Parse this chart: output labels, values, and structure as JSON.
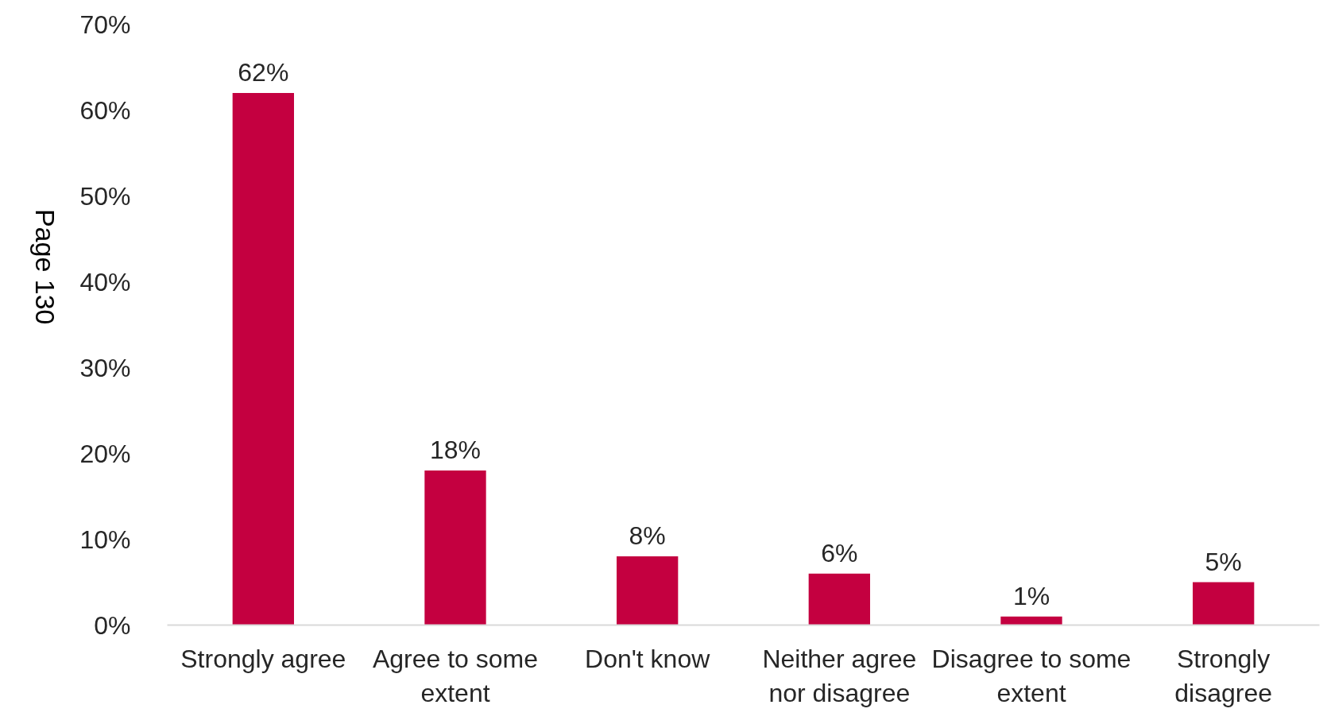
{
  "chart_data": {
    "type": "bar",
    "categories": [
      "Strongly agree",
      "Agree to some extent",
      "Don't know",
      "Neither agree nor disagree",
      "Disagree to some extent",
      "Strongly disagree"
    ],
    "values": [
      62,
      18,
      8,
      6,
      1,
      5
    ],
    "color": "#c40040",
    "data_labels": true,
    "value_labels": [
      "62%",
      "18%",
      "8%",
      "6%",
      "1%",
      "5%"
    ],
    "ylim": [
      0,
      70
    ],
    "yticks": [
      {
        "value": 0,
        "label": "0%"
      },
      {
        "value": 10,
        "label": "10%"
      },
      {
        "value": 20,
        "label": "20%"
      },
      {
        "value": 30,
        "label": "30%"
      },
      {
        "value": 40,
        "label": "40%"
      },
      {
        "value": 50,
        "label": "50%"
      },
      {
        "value": 60,
        "label": "60%"
      },
      {
        "value": 70,
        "label": "70%"
      }
    ],
    "grid": false,
    "annotations": [
      "Page 130"
    ]
  }
}
